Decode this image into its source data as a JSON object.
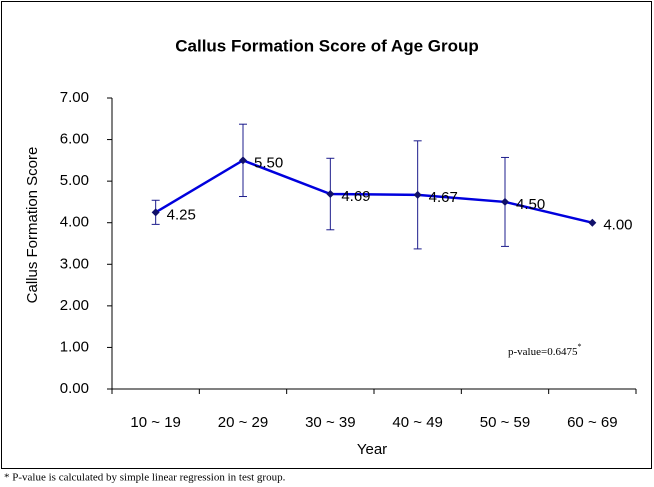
{
  "chart_data": {
    "type": "line",
    "title": "Callus Formation Score of Age Group",
    "x_label": "Year",
    "y_label": "Callus Formation Score",
    "categories": [
      "10 ~ 19",
      "20 ~ 29",
      "30 ~ 39",
      "40 ~ 49",
      "50 ~ 59",
      "60 ~ 69"
    ],
    "series": [
      {
        "name": "Callus Formation Score",
        "color": "#0000dd",
        "marker_color": "#10106a",
        "error_color": "#1c1c8c",
        "values": [
          4.25,
          5.5,
          4.69,
          4.67,
          4.5,
          4.0
        ],
        "value_labels": [
          "4.25",
          "5.50",
          "4.69",
          "4.67",
          "4.50",
          "4.00"
        ],
        "errors": [
          0.29,
          0.87,
          0.86,
          1.3,
          1.07,
          null
        ]
      }
    ],
    "ylim": [
      0,
      7
    ],
    "yticks": [
      {
        "value": 0,
        "label": "0.00"
      },
      {
        "value": 1,
        "label": "1.00"
      },
      {
        "value": 2,
        "label": "2.00"
      },
      {
        "value": 3,
        "label": "3.00"
      },
      {
        "value": 4,
        "label": "4.00"
      },
      {
        "value": 5,
        "label": "5.00"
      },
      {
        "value": 6,
        "label": "6.00"
      },
      {
        "value": 7,
        "label": "7.00"
      }
    ],
    "grid": false,
    "annotation": {
      "text": "p-value=0.6475",
      "superscript": "*"
    },
    "footnote": "* P-value is calculated by simple linear regression in test group."
  }
}
